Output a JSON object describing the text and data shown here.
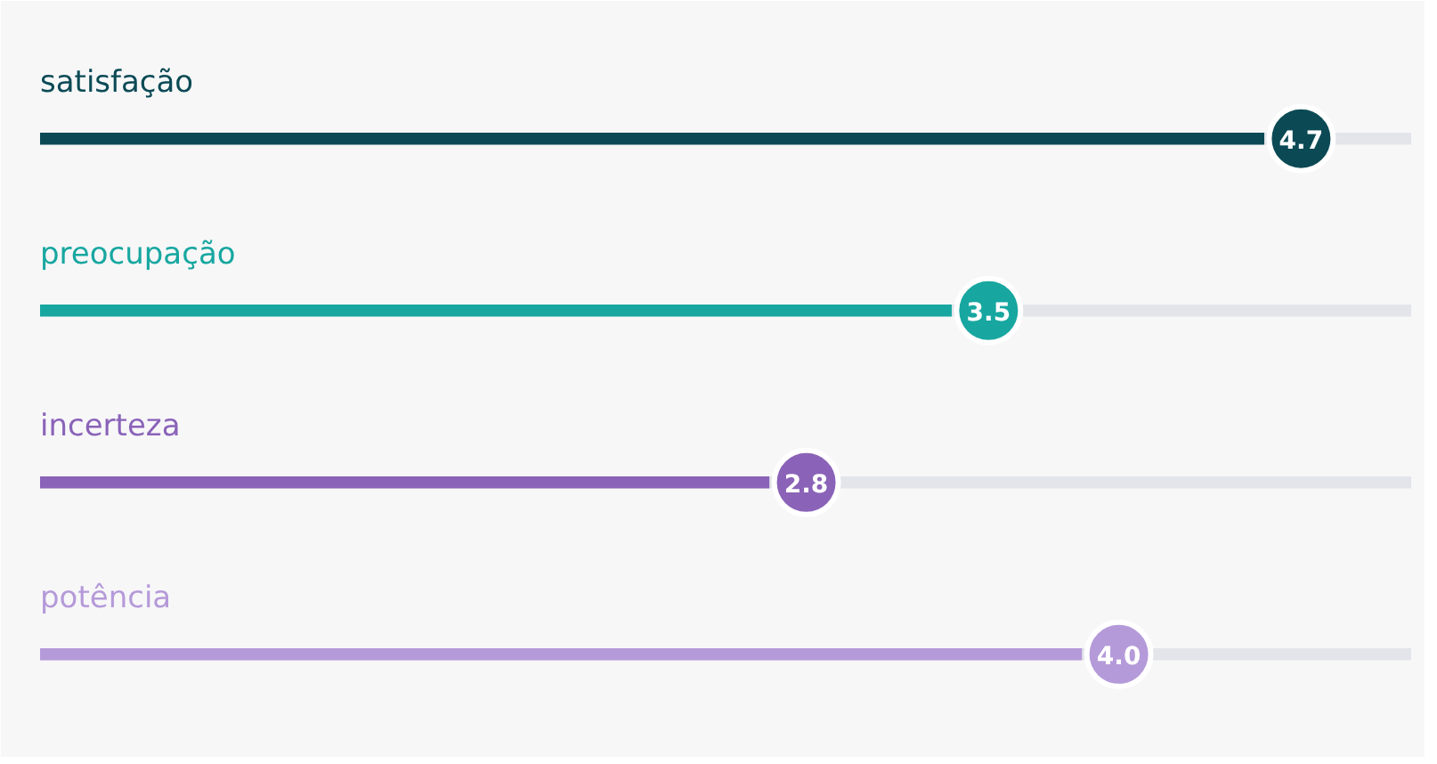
{
  "chart_data": {
    "type": "bar",
    "orientation": "horizontal",
    "categories": [
      "satisfação",
      "preocupação",
      "incerteza",
      "potência"
    ],
    "values": [
      4.7,
      3.5,
      2.8,
      4.0
    ],
    "value_labels": [
      "4.7",
      "3.5",
      "2.8",
      "4.0"
    ],
    "colors": [
      "#0b4a55",
      "#17a7a0",
      "#8a63b8",
      "#b59ad9"
    ],
    "tick_labels": false,
    "grid": false
  }
}
